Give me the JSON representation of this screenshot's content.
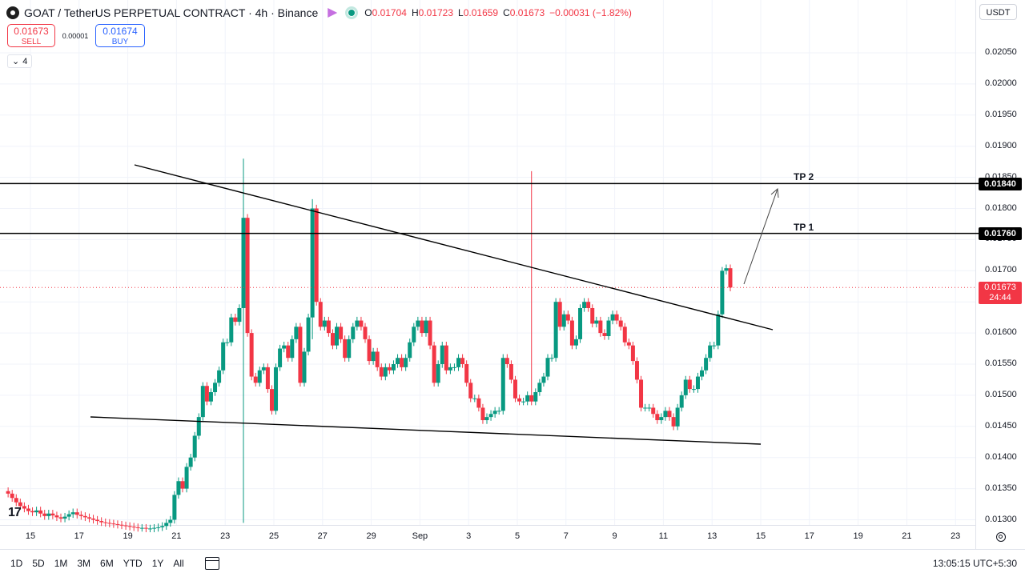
{
  "header": {
    "symbol_title": "GOAT / TetherUS PERPETUAL CONTRACT · 4h · Binance",
    "ohlc": [
      {
        "k": "O",
        "v": "0.01704"
      },
      {
        "k": "H",
        "v": "0.01723"
      },
      {
        "k": "L",
        "v": "0.01659"
      },
      {
        "k": "C",
        "v": "0.01673"
      }
    ],
    "change": "−0.00031 (−1.82%)"
  },
  "trade": {
    "sell_price": "0.01673",
    "sell_label": "SELL",
    "spread": "0.00001",
    "buy_price": "0.01674",
    "buy_label": "BUY"
  },
  "indicator_badge": "4",
  "currency": "USDT",
  "price_axis": {
    "ticks": [
      "0.02050",
      "0.02000",
      "0.01950",
      "0.01900",
      "0.01850",
      "0.01800",
      "0.01750",
      "0.01700",
      "0.01650",
      "0.01600",
      "0.01550",
      "0.01500",
      "0.01450",
      "0.01400",
      "0.01350",
      "0.01300"
    ],
    "tp2_price": "0.01840",
    "tp1_price": "0.01760",
    "current_price": "0.01673",
    "countdown": "24:44"
  },
  "annotations": {
    "tp2": "TP 2",
    "tp1": "TP 1"
  },
  "time_axis": {
    "labels": [
      "15",
      "17",
      "19",
      "21",
      "23",
      "25",
      "27",
      "29",
      "Sep",
      "3",
      "5",
      "7",
      "9",
      "11",
      "13",
      "15",
      "17",
      "19",
      "21",
      "23"
    ]
  },
  "timeframes": [
    "1D",
    "5D",
    "1M",
    "3M",
    "6M",
    "YTD",
    "1Y",
    "All"
  ],
  "clock": "13:05:15 UTC+5:30",
  "colors": {
    "up": "#089981",
    "down": "#f23645",
    "line": "#000000",
    "grid": "#f0f3fa"
  },
  "chart_data": {
    "type": "candlestick",
    "ylim": [
      0.01285,
      0.02085
    ],
    "x_range_days": [
      14.5,
      23.5
    ],
    "candles_per_day": 6,
    "start_day": 14,
    "closes": [
      0.01342,
      0.01335,
      0.01328,
      0.01322,
      0.01318,
      0.01314,
      0.01312,
      0.01315,
      0.0131,
      0.01306,
      0.0131,
      0.01307,
      0.01304,
      0.01302,
      0.01305,
      0.01309,
      0.01312,
      0.01308,
      0.01306,
      0.01304,
      0.01302,
      0.013,
      0.01298,
      0.01296,
      0.01295,
      0.01294,
      0.01293,
      0.01292,
      0.01291,
      0.0129,
      0.01289,
      0.01288,
      0.01287,
      0.01287,
      0.01286,
      0.01286,
      0.01287,
      0.01288,
      0.0129,
      0.01295,
      0.013,
      0.0134,
      0.01362,
      0.0135,
      0.01385,
      0.014,
      0.01435,
      0.01465,
      0.01515,
      0.0149,
      0.01505,
      0.0152,
      0.0154,
      0.01585,
      0.01585,
      0.01625,
      0.01618,
      0.0164,
      0.01785,
      0.016,
      0.0153,
      0.0152,
      0.0154,
      0.01545,
      0.0151,
      0.01475,
      0.01545,
      0.01575,
      0.0158,
      0.0156,
      0.0159,
      0.0161,
      0.0152,
      0.0157,
      0.01625,
      0.018,
      0.0165,
      0.0161,
      0.0162,
      0.016,
      0.0158,
      0.0161,
      0.0159,
      0.0156,
      0.0159,
      0.0161,
      0.0162,
      0.0161,
      0.0159,
      0.01555,
      0.0157,
      0.01545,
      0.0153,
      0.01545,
      0.0154,
      0.0155,
      0.0156,
      0.01545,
      0.0156,
      0.01585,
      0.0161,
      0.0162,
      0.016,
      0.0162,
      0.0158,
      0.0152,
      0.0155,
      0.0158,
      0.0154,
      0.01545,
      0.01545,
      0.0156,
      0.0155,
      0.0152,
      0.01495,
      0.01495,
      0.0148,
      0.0146,
      0.01465,
      0.0147,
      0.01475,
      0.01475,
      0.0156,
      0.0155,
      0.01525,
      0.01495,
      0.0149,
      0.0149,
      0.015,
      0.0149,
      0.01505,
      0.0152,
      0.0153,
      0.0156,
      0.0156,
      0.0165,
      0.0161,
      0.0163,
      0.0162,
      0.0158,
      0.0159,
      0.0164,
      0.0165,
      0.0164,
      0.01615,
      0.0162,
      0.016,
      0.01595,
      0.0162,
      0.0163,
      0.0162,
      0.0161,
      0.01585,
      0.0158,
      0.01555,
      0.01525,
      0.0148,
      0.0148,
      0.0148,
      0.0147,
      0.0146,
      0.01465,
      0.01475,
      0.01465,
      0.0145,
      0.0148,
      0.015,
      0.01525,
      0.0151,
      0.0151,
      0.0153,
      0.0154,
      0.0156,
      0.0158,
      0.0158,
      0.0163,
      0.017,
      0.01704,
      0.01673
    ]
  }
}
